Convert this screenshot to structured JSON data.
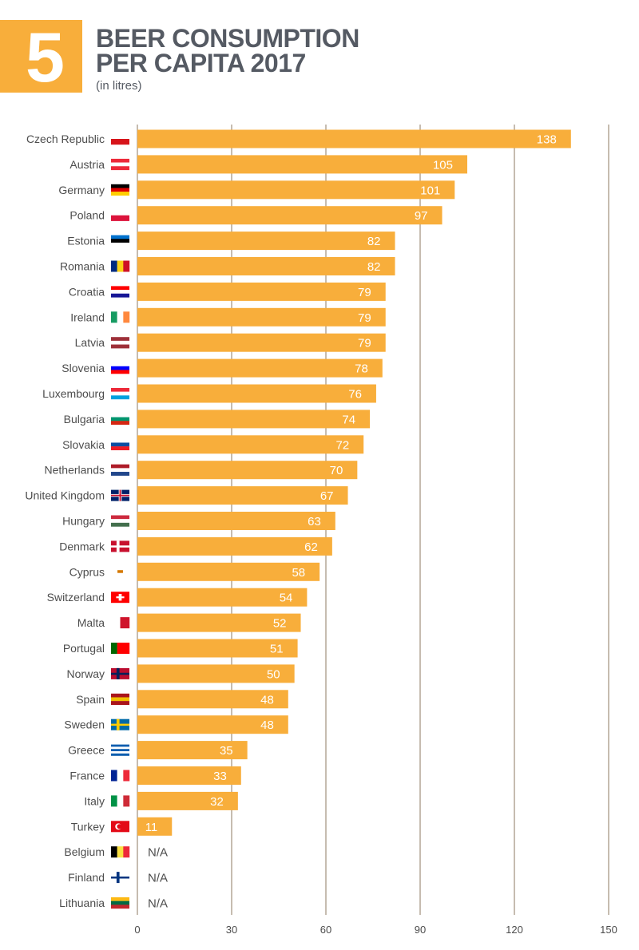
{
  "header": {
    "number": "5",
    "title_line1": "BEER CONSUMPTION",
    "title_line2": "PER CAPITA 2017",
    "subtitle": "(in litres)"
  },
  "colors": {
    "bar": "#f8ae3b",
    "grid": "#b4a596",
    "text": "#4d4d4d",
    "title": "#555a63"
  },
  "chart_data": {
    "type": "bar",
    "orientation": "horizontal",
    "title": "BEER CONSUMPTION PER CAPITA 2017",
    "subtitle": "(in litres)",
    "xlim": [
      0,
      150
    ],
    "x_ticks": [
      "0",
      "30",
      "60",
      "90",
      "120",
      "150"
    ],
    "grid": true,
    "categories": [
      "Czech Republic",
      "Austria",
      "Germany",
      "Poland",
      "Estonia",
      "Romania",
      "Croatia",
      "Ireland",
      "Latvia",
      "Slovenia",
      "Luxembourg",
      "Bulgaria",
      "Slovakia",
      "Netherlands",
      "United Kingdom",
      "Hungary",
      "Denmark",
      "Cyprus",
      "Switzerland",
      "Malta",
      "Portugal",
      "Norway",
      "Spain",
      "Sweden",
      "Greece",
      "France",
      "Italy",
      "Turkey",
      "Belgium",
      "Finland",
      "Lithuania"
    ],
    "values": [
      138,
      105,
      101,
      97,
      82,
      82,
      79,
      79,
      79,
      78,
      76,
      74,
      72,
      70,
      67,
      63,
      62,
      58,
      54,
      52,
      51,
      50,
      48,
      48,
      35,
      33,
      32,
      11,
      null,
      null,
      null
    ],
    "labels": [
      "138",
      "105",
      "101",
      "97",
      "82",
      "82",
      "79",
      "79",
      "79",
      "78",
      "76",
      "74",
      "72",
      "70",
      "67",
      "63",
      "62",
      "58",
      "54",
      "52",
      "51",
      "50",
      "48",
      "48",
      "35",
      "33",
      "32",
      "11",
      "N/A",
      "N/A",
      "N/A"
    ]
  }
}
